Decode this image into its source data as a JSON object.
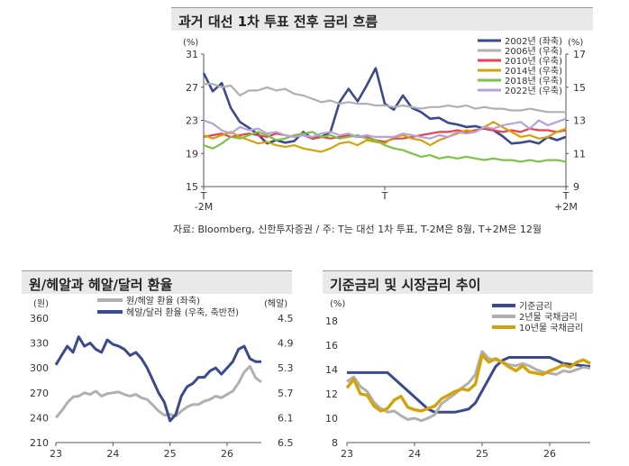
{
  "top": {
    "title": "과거 대선 1차 투표 전후 금리 흐름",
    "source": "자료: Bloomberg, 신한투자증권 / 주: T는 대선 1차 투표, T-2M은 8월, T+2M은 12월"
  },
  "chart_data": [
    {
      "type": "line",
      "title": "과거 대선 1차 투표 전후 금리 흐름",
      "ylabel_left": "(%)",
      "ylabel_right": "(%)",
      "x_labels": [
        [
          "T",
          "-2M"
        ],
        [
          "T"
        ],
        [
          "T",
          "+2M"
        ]
      ],
      "x_range": [
        -60,
        60
      ],
      "ylim_left": [
        15,
        31
      ],
      "yticks_left": [
        15,
        19,
        23,
        27,
        31
      ],
      "ylim_right": [
        9,
        17
      ],
      "yticks_right": [
        9,
        11,
        13,
        15,
        17
      ],
      "legend_position": "top-right",
      "series": [
        {
          "name": "2002년 (좌축)",
          "axis": "left",
          "color": "#3a4a8c",
          "x": [
            -60,
            -57,
            -54,
            -51,
            -48,
            -45,
            -42,
            -39,
            -36,
            -33,
            -30,
            -27,
            -24,
            -21,
            -18,
            -15,
            -12,
            -9,
            -6,
            -3,
            0,
            3,
            6,
            9,
            12,
            15,
            18,
            21,
            24,
            27,
            30,
            33,
            36,
            39,
            42,
            45,
            48,
            51,
            54,
            57,
            60
          ],
          "y": [
            28.7,
            26.5,
            27.5,
            24.5,
            22.8,
            22.1,
            21.3,
            20.2,
            20.6,
            20.3,
            20.5,
            21.6,
            20.8,
            21.0,
            21.6,
            25.2,
            26.8,
            25.3,
            27.2,
            29.3,
            25.0,
            24.3,
            26.0,
            24.5,
            24.0,
            23.2,
            23.3,
            22.7,
            22.5,
            22.2,
            22.3,
            22.0,
            21.8,
            21.1,
            20.2,
            20.3,
            20.5,
            20.2,
            21.0,
            20.6,
            21.0
          ]
        },
        {
          "name": "2006년 (우축)",
          "axis": "right",
          "color": "#b0b0b0",
          "x": [
            -60,
            -57,
            -54,
            -51,
            -48,
            -45,
            -42,
            -39,
            -36,
            -33,
            -30,
            -27,
            -24,
            -21,
            -18,
            -15,
            -12,
            -9,
            -6,
            -3,
            0,
            3,
            6,
            9,
            12,
            15,
            18,
            21,
            24,
            27,
            30,
            33,
            36,
            39,
            42,
            45,
            48,
            51,
            54,
            57,
            60
          ],
          "y": [
            15.2,
            15.2,
            15.0,
            15.1,
            14.5,
            14.8,
            14.8,
            15.0,
            14.8,
            14.9,
            14.6,
            14.5,
            14.3,
            14.1,
            14.2,
            14.0,
            14.1,
            14.0,
            14.0,
            13.9,
            13.9,
            13.8,
            13.9,
            13.8,
            13.7,
            13.8,
            13.8,
            13.9,
            13.8,
            13.9,
            13.7,
            13.8,
            13.7,
            13.7,
            13.6,
            13.6,
            13.7,
            13.6,
            13.5,
            13.5,
            13.5
          ]
        },
        {
          "name": "2010년 (우축)",
          "axis": "right",
          "color": "#e8414f",
          "x": [
            -60,
            -57,
            -54,
            -51,
            -48,
            -45,
            -42,
            -39,
            -36,
            -33,
            -30,
            -27,
            -24,
            -21,
            -18,
            -15,
            -12,
            -9,
            -6,
            -3,
            0,
            3,
            6,
            9,
            12,
            15,
            18,
            21,
            24,
            27,
            30,
            33,
            36,
            39,
            42,
            45,
            48,
            51,
            54,
            57,
            60
          ],
          "y": [
            12.0,
            12.1,
            12.2,
            12.0,
            12.1,
            12.2,
            12.1,
            12.0,
            12.2,
            12.1,
            12.0,
            12.1,
            11.9,
            12.0,
            11.9,
            12.0,
            12.1,
            12.0,
            12.0,
            11.8,
            11.7,
            11.9,
            11.9,
            12.0,
            12.1,
            12.2,
            12.3,
            12.3,
            12.4,
            12.3,
            12.4,
            12.5,
            12.4,
            12.3,
            12.4,
            12.3,
            12.5,
            12.4,
            12.4,
            12.3,
            12.4
          ]
        },
        {
          "name": "2014년 (우축)",
          "axis": "right",
          "color": "#d4a20b",
          "x": [
            -60,
            -57,
            -54,
            -51,
            -48,
            -45,
            -42,
            -39,
            -36,
            -33,
            -30,
            -27,
            -24,
            -21,
            -18,
            -15,
            -12,
            -9,
            -6,
            -3,
            0,
            3,
            6,
            9,
            12,
            15,
            18,
            21,
            24,
            27,
            30,
            33,
            36,
            39,
            42,
            45,
            48,
            51,
            54,
            57,
            60
          ],
          "y": [
            12.1,
            11.9,
            12.1,
            12.3,
            12.0,
            11.8,
            11.6,
            11.7,
            11.5,
            11.4,
            11.5,
            11.3,
            11.2,
            11.1,
            11.3,
            11.6,
            11.7,
            11.5,
            11.8,
            11.7,
            11.6,
            12.0,
            12.1,
            11.9,
            11.8,
            11.5,
            11.8,
            12.0,
            12.2,
            12.4,
            12.3,
            12.6,
            12.9,
            12.6,
            12.3,
            12.0,
            12.1,
            11.9,
            12.0,
            12.3,
            12.5
          ]
        },
        {
          "name": "2018년 (우축)",
          "axis": "right",
          "color": "#7cc243",
          "x": [
            -60,
            -57,
            -54,
            -51,
            -48,
            -45,
            -42,
            -39,
            -36,
            -33,
            -30,
            -27,
            -24,
            -21,
            -18,
            -15,
            -12,
            -9,
            -6,
            -3,
            0,
            3,
            6,
            9,
            12,
            15,
            18,
            21,
            24,
            27,
            30,
            33,
            36,
            39,
            42,
            45,
            48,
            51,
            54,
            57,
            60
          ],
          "y": [
            11.5,
            11.3,
            11.6,
            12.0,
            11.9,
            12.1,
            12.3,
            12.1,
            11.8,
            11.9,
            12.1,
            12.2,
            12.3,
            12.0,
            12.1,
            11.9,
            12.0,
            12.1,
            11.9,
            11.8,
            11.5,
            11.3,
            11.2,
            11.0,
            10.8,
            10.9,
            10.7,
            10.8,
            10.7,
            10.8,
            10.7,
            10.6,
            10.7,
            10.6,
            10.6,
            10.5,
            10.6,
            10.5,
            10.6,
            10.6,
            10.5
          ]
        },
        {
          "name": "2022년 (우축)",
          "axis": "right",
          "color": "#b7a3d6",
          "x": [
            -60,
            -57,
            -54,
            -51,
            -48,
            -45,
            -42,
            -39,
            -36,
            -33,
            -30,
            -27,
            -24,
            -21,
            -18,
            -15,
            -12,
            -9,
            -6,
            -3,
            0,
            3,
            6,
            9,
            12,
            15,
            18,
            21,
            24,
            27,
            30,
            33,
            36,
            39,
            42,
            45,
            48,
            51,
            54,
            57,
            60
          ],
          "y": [
            13.0,
            12.8,
            12.4,
            12.2,
            12.6,
            12.4,
            12.5,
            12.2,
            12.3,
            12.1,
            12.0,
            12.1,
            12.0,
            12.2,
            12.3,
            12.1,
            12.2,
            12.0,
            12.1,
            12.0,
            12.0,
            12.0,
            12.2,
            12.1,
            12.0,
            11.9,
            12.1,
            12.0,
            12.3,
            12.2,
            12.3,
            12.6,
            12.5,
            12.7,
            12.8,
            12.9,
            12.5,
            13.0,
            12.7,
            12.9,
            13.1
          ]
        }
      ]
    },
    {
      "type": "line",
      "title": "원/헤알과 헤알/달러 환율",
      "ylabel_left": "(원)",
      "ylabel_right": "(헤알)",
      "x_labels": [
        "23",
        "24",
        "25",
        "26"
      ],
      "x_range": [
        2023,
        2026.6
      ],
      "ylim_left": [
        210,
        360
      ],
      "yticks_left": [
        210,
        240,
        270,
        300,
        330,
        360
      ],
      "ylim_right_inverted": [
        6.5,
        4.5
      ],
      "yticks_right": [
        4.5,
        4.9,
        5.3,
        5.7,
        6.1,
        6.5
      ],
      "legend_position": "top",
      "series": [
        {
          "name": "원/헤알 환율 (좌축)",
          "axis": "left",
          "color": "#b0b0b0",
          "x": [
            2023.0,
            2023.1,
            2023.2,
            2023.3,
            2023.4,
            2023.5,
            2023.6,
            2023.7,
            2023.8,
            2023.9,
            2024.0,
            2024.1,
            2024.2,
            2024.3,
            2024.4,
            2024.5,
            2024.6,
            2024.7,
            2024.8,
            2024.9,
            2025.0,
            2025.1,
            2025.2,
            2025.3,
            2025.4,
            2025.5,
            2025.6,
            2025.7,
            2025.8,
            2025.9,
            2026.0,
            2026.1,
            2026.2,
            2026.3,
            2026.4,
            2026.5,
            2026.6
          ],
          "y": [
            240,
            248,
            258,
            265,
            266,
            270,
            268,
            272,
            266,
            269,
            270,
            271,
            268,
            266,
            268,
            264,
            262,
            255,
            248,
            243,
            244,
            242,
            248,
            253,
            256,
            256,
            260,
            262,
            266,
            264,
            268,
            272,
            282,
            295,
            302,
            288,
            283
          ]
        },
        {
          "name": "헤알/달러 환율 (우축, 축반전)",
          "axis": "right",
          "color": "#3a4a8c",
          "x": [
            2023.0,
            2023.1,
            2023.2,
            2023.3,
            2023.4,
            2023.5,
            2023.6,
            2023.7,
            2023.8,
            2023.9,
            2024.0,
            2024.1,
            2024.2,
            2024.3,
            2024.4,
            2024.5,
            2024.6,
            2024.7,
            2024.8,
            2024.9,
            2025.0,
            2025.1,
            2025.2,
            2025.3,
            2025.4,
            2025.5,
            2025.6,
            2025.7,
            2025.8,
            2025.9,
            2026.0,
            2026.1,
            2026.2,
            2026.3,
            2026.4,
            2026.5,
            2026.6
          ],
          "y": [
            5.25,
            5.1,
            4.95,
            5.05,
            4.8,
            4.95,
            4.9,
            5.0,
            5.05,
            4.85,
            4.92,
            4.95,
            5.0,
            5.1,
            5.05,
            5.15,
            5.3,
            5.5,
            5.7,
            5.85,
            6.15,
            6.05,
            5.75,
            5.6,
            5.55,
            5.45,
            5.45,
            5.35,
            5.3,
            5.4,
            5.3,
            5.2,
            5.0,
            4.95,
            5.15,
            5.2,
            5.2
          ]
        }
      ]
    },
    {
      "type": "line",
      "title": "기준금리 및 시장금리 추이",
      "ylabel_left": "(%)",
      "x_labels": [
        "23",
        "24",
        "25",
        "26"
      ],
      "x_range": [
        2023,
        2026.6
      ],
      "ylim_left": [
        8,
        18
      ],
      "yticks_left": [
        8,
        10,
        12,
        14,
        16,
        18
      ],
      "legend_position": "top-right",
      "series": [
        {
          "name": "기준금리",
          "color": "#3a4a8c",
          "x": [
            2023.0,
            2023.6,
            2023.7,
            2023.8,
            2023.9,
            2024.0,
            2024.1,
            2024.2,
            2024.3,
            2024.4,
            2024.5,
            2024.6,
            2024.8,
            2024.9,
            2025.0,
            2025.1,
            2025.2,
            2025.3,
            2025.4,
            2025.5,
            2026.0,
            2026.1,
            2026.2,
            2026.6
          ],
          "y": [
            13.75,
            13.75,
            13.25,
            12.75,
            12.25,
            11.75,
            11.25,
            10.75,
            10.5,
            10.5,
            10.5,
            10.5,
            10.75,
            11.25,
            12.25,
            13.25,
            14.25,
            14.75,
            15.0,
            15.0,
            15.0,
            14.75,
            14.5,
            14.25
          ]
        },
        {
          "name": "2년물 국채금리",
          "color": "#b0b0b0",
          "x": [
            2023.0,
            2023.1,
            2023.2,
            2023.3,
            2023.4,
            2023.5,
            2023.6,
            2023.7,
            2023.8,
            2023.9,
            2024.0,
            2024.1,
            2024.2,
            2024.3,
            2024.4,
            2024.5,
            2024.6,
            2024.7,
            2024.8,
            2024.9,
            2025.0,
            2025.1,
            2025.2,
            2025.3,
            2025.4,
            2025.5,
            2025.6,
            2025.7,
            2025.8,
            2025.9,
            2026.0,
            2026.1,
            2026.2,
            2026.3,
            2026.4,
            2026.5,
            2026.6
          ],
          "y": [
            13.0,
            13.4,
            12.6,
            12.2,
            11.3,
            10.8,
            10.5,
            10.6,
            10.2,
            9.9,
            10.0,
            9.8,
            10.0,
            10.3,
            11.2,
            11.6,
            12.0,
            12.5,
            12.9,
            13.6,
            15.5,
            14.9,
            14.8,
            14.6,
            14.4,
            14.3,
            14.5,
            14.3,
            14.0,
            13.8,
            13.7,
            13.6,
            13.9,
            13.8,
            14.0,
            14.2,
            14.1
          ]
        },
        {
          "name": "10년물 국채금리",
          "color": "#d4a20b",
          "x": [
            2023.0,
            2023.1,
            2023.2,
            2023.3,
            2023.4,
            2023.5,
            2023.6,
            2023.7,
            2023.8,
            2023.9,
            2024.0,
            2024.1,
            2024.2,
            2024.3,
            2024.4,
            2024.5,
            2024.6,
            2024.7,
            2024.8,
            2024.9,
            2025.0,
            2025.1,
            2025.2,
            2025.3,
            2025.4,
            2025.5,
            2025.6,
            2025.7,
            2025.8,
            2025.9,
            2026.0,
            2026.1,
            2026.2,
            2026.3,
            2026.4,
            2026.5,
            2026.6
          ],
          "y": [
            12.5,
            13.2,
            12.0,
            11.9,
            11.0,
            10.6,
            10.8,
            11.5,
            11.8,
            10.9,
            10.7,
            10.6,
            10.8,
            11.0,
            11.6,
            11.9,
            12.2,
            12.4,
            12.3,
            12.8,
            15.2,
            14.6,
            14.9,
            14.6,
            14.2,
            13.9,
            14.3,
            13.8,
            13.7,
            13.6,
            13.9,
            14.1,
            14.4,
            14.2,
            14.6,
            14.8,
            14.5
          ]
        }
      ]
    }
  ],
  "bottom_left": {
    "title": "원/헤알과 헤알/달러 환율"
  },
  "bottom_right": {
    "title": "기준금리 및 시장금리 추이"
  }
}
